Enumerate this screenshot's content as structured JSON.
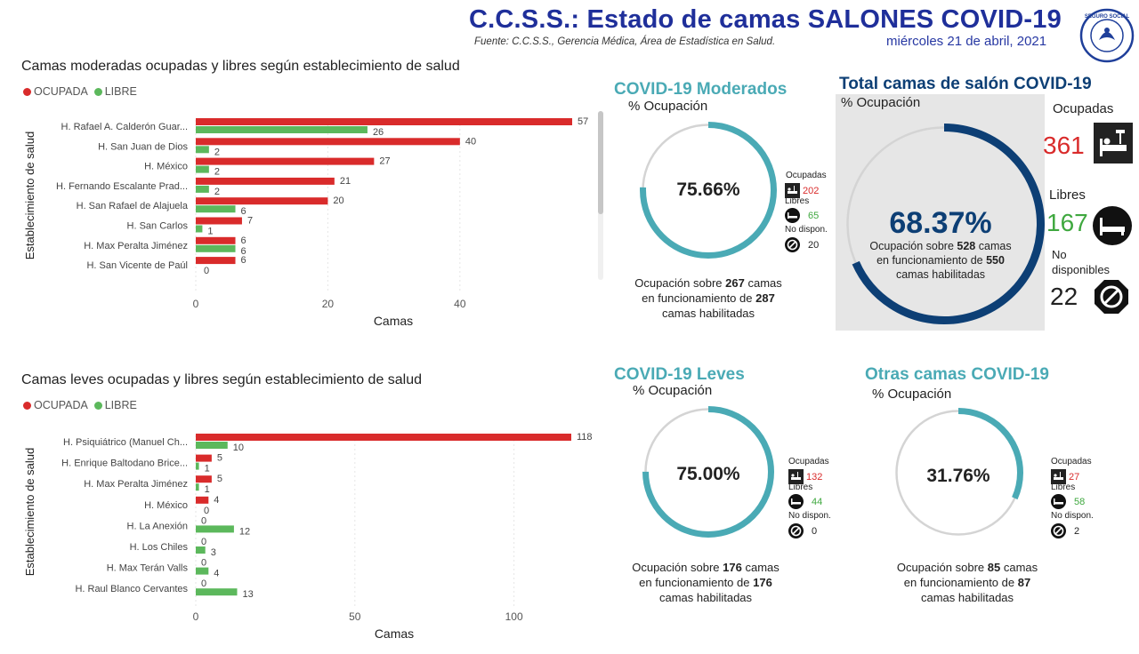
{
  "header": {
    "title": "C.C.S.S.: Estado de camas SALONES COVID-19",
    "source": "Fuente: C.C.S.S., Gerencia Médica, Área de Estadística en Salud.",
    "date": "miércoles 21 de abril, 2021",
    "logo_text": "SEGURO SOCIAL"
  },
  "colors": {
    "ocupada": "#d92b2b",
    "libre": "#5cb85c",
    "teal": "#4aaab5",
    "navy": "#0d3f75"
  },
  "charts": {
    "moderadas": {
      "title": "Camas moderadas ocupadas y libres según establecimiento de salud",
      "legend": [
        "OCUPADA",
        "LIBRE"
      ]
    },
    "leves": {
      "title": "Camas leves ocupadas y libres según establecimiento de salud",
      "legend": [
        "OCUPADA",
        "LIBRE"
      ]
    }
  },
  "chart_data": [
    {
      "type": "bar",
      "orientation": "horizontal",
      "title": "Camas moderadas ocupadas y libres según establecimiento de salud",
      "xlabel": "Camas",
      "ylabel": "Establecimiento de salud",
      "categories": [
        "H. Rafael A. Calderón Guar...",
        "H. San Juan de Dios",
        "H. México",
        "H. Fernando Escalante Prad...",
        "H. San Rafael de Alajuela",
        "H. San Carlos",
        "H. Max Peralta Jiménez",
        "H. San Vicente de Paúl"
      ],
      "series": [
        {
          "name": "OCUPADA",
          "values": [
            57,
            40,
            27,
            21,
            20,
            7,
            6,
            6
          ]
        },
        {
          "name": "LIBRE",
          "values": [
            26,
            2,
            2,
            2,
            6,
            1,
            6,
            0
          ]
        }
      ],
      "xticks": [
        0,
        20,
        40
      ],
      "xlim": [
        0,
        57
      ],
      "legend": "top-left"
    },
    {
      "type": "bar",
      "orientation": "horizontal",
      "title": "Camas leves ocupadas y libres según establecimiento de salud",
      "xlabel": "Camas",
      "ylabel": "Establecimiento de salud",
      "categories": [
        "H. Psiquiátrico (Manuel Ch...",
        "H. Enrique Baltodano Brice...",
        "H. Max Peralta Jiménez",
        "H. México",
        "H. La Anexión",
        "H. Los Chiles",
        "H. Max Terán Valls",
        "H. Raul Blanco Cervantes"
      ],
      "series": [
        {
          "name": "OCUPADA",
          "values": [
            118,
            5,
            5,
            4,
            0,
            0,
            0,
            0
          ]
        },
        {
          "name": "LIBRE",
          "values": [
            10,
            1,
            1,
            0,
            12,
            3,
            4,
            13
          ]
        }
      ],
      "xticks": [
        0,
        50,
        100
      ],
      "xlim": [
        0,
        118
      ],
      "legend": "top-left"
    }
  ],
  "gauges": {
    "moderados": {
      "title": "COVID-19 Moderados",
      "pct_label": "% Ocupación",
      "value": "75.66%",
      "fraction": 0.7566,
      "ocupadas_label": "Ocupadas",
      "ocupadas": "202",
      "libres_label": "Libres",
      "libres": "65",
      "nodisp_label": "No dispon.",
      "nodisp": "20",
      "occ_prefix": "Ocupación sobre",
      "funcionando": "267",
      "occ_mid": "camas",
      "occ_line2": "en funcionamiento de",
      "habilitadas": "287",
      "occ_line3": "camas habilitadas"
    },
    "leves": {
      "title": "COVID-19 Leves",
      "pct_label": "% Ocupación",
      "value": "75.00%",
      "fraction": 0.75,
      "ocupadas_label": "Ocupadas",
      "ocupadas": "132",
      "libres_label": "Libres",
      "libres": "44",
      "nodisp_label": "No dispon.",
      "nodisp": "0",
      "occ_prefix": "Ocupación sobre",
      "funcionando": "176",
      "occ_mid": "camas",
      "occ_line2": "en funcionamiento de",
      "habilitadas": "176",
      "occ_line3": "camas habilitadas"
    },
    "otras": {
      "title": "Otras camas COVID-19",
      "pct_label": "% Ocupación",
      "value": "31.76%",
      "fraction": 0.3176,
      "ocupadas_label": "Ocupadas",
      "ocupadas": "27",
      "libres_label": "Libres",
      "libres": "58",
      "nodisp_label": "No dispon.",
      "nodisp": "2",
      "occ_prefix": "Ocupación sobre",
      "funcionando": "85",
      "occ_mid": "camas",
      "occ_line2": "en funcionamiento de",
      "habilitadas": "87",
      "occ_line3": "camas habilitadas"
    },
    "total": {
      "title": "Total camas de salón COVID-19",
      "pct_label": "% Ocupación",
      "value": "68.37%",
      "fraction": 0.6837,
      "occ_prefix": "Ocupación sobre",
      "funcionando": "528",
      "occ_mid": "camas",
      "occ_line2": "en funcionamiento de",
      "habilitadas": "550",
      "occ_line3": "camas habilitadas",
      "ocupadas_label": "Ocupadas",
      "ocupadas": "361",
      "libres_label": "Libres",
      "libres": "167",
      "nodisp_label1": "No",
      "nodisp_label2": "disponibles",
      "nodisp": "22"
    }
  }
}
